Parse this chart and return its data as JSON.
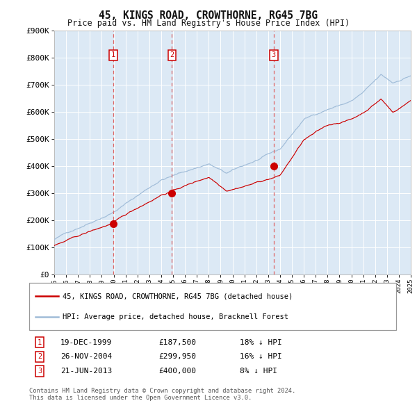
{
  "title": "45, KINGS ROAD, CROWTHORNE, RG45 7BG",
  "subtitle": "Price paid vs. HM Land Registry's House Price Index (HPI)",
  "ylim": [
    0,
    900000
  ],
  "yticks": [
    0,
    100000,
    200000,
    300000,
    400000,
    500000,
    600000,
    700000,
    800000,
    900000
  ],
  "ytick_labels": [
    "£0",
    "£100K",
    "£200K",
    "£300K",
    "£400K",
    "£500K",
    "£600K",
    "£700K",
    "£800K",
    "£900K"
  ],
  "x_start_year": 1995,
  "x_end_year": 2025,
  "background_color": "#ffffff",
  "plot_bg_color": "#dce9f5",
  "grid_color": "#ffffff",
  "hpi_line_color": "#a0bcd8",
  "price_line_color": "#cc0000",
  "sale_marker_color": "#cc0000",
  "dashed_line_color": "#dd6666",
  "sale1_year": 1999.97,
  "sale1_price": 187500,
  "sale2_year": 2004.9,
  "sale2_price": 299950,
  "sale3_year": 2013.47,
  "sale3_price": 400000,
  "legend_line1": "45, KINGS ROAD, CROWTHORNE, RG45 7BG (detached house)",
  "legend_line2": "HPI: Average price, detached house, Bracknell Forest",
  "table_rows": [
    {
      "num": "1",
      "date": "19-DEC-1999",
      "price": "£187,500",
      "hpi": "18% ↓ HPI"
    },
    {
      "num": "2",
      "date": "26-NOV-2004",
      "price": "£299,950",
      "hpi": "16% ↓ HPI"
    },
    {
      "num": "3",
      "date": "21-JUN-2013",
      "price": "£400,000",
      "hpi": "8% ↓ HPI"
    }
  ],
  "footnote1": "Contains HM Land Registry data © Crown copyright and database right 2024.",
  "footnote2": "This data is licensed under the Open Government Licence v3.0."
}
